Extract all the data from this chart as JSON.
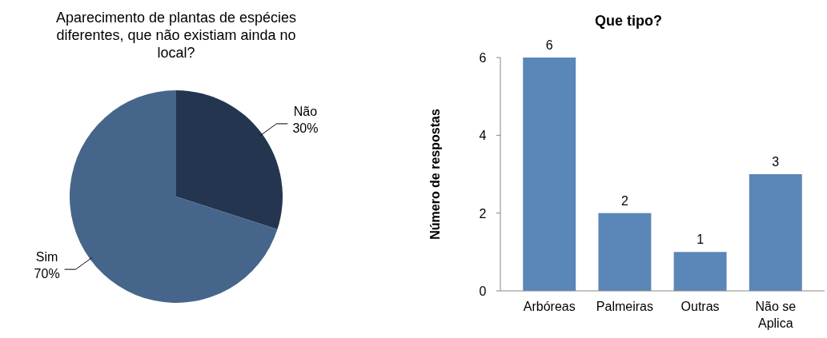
{
  "chart_data": [
    {
      "type": "pie",
      "title": "Aparecimento de plantas de espécies diferentes, que não existiam ainda no local?",
      "categories": [
        "Não",
        "Sim"
      ],
      "values": [
        30,
        70
      ],
      "value_labels": [
        "30%",
        "70%"
      ],
      "colors": [
        "#24364f",
        "#46658a"
      ]
    },
    {
      "type": "bar",
      "title": "Que tipo?",
      "ylabel": "Número de respostas",
      "categories": [
        "Arbóreas",
        "Palmeiras",
        "Outras",
        "Não se Aplica"
      ],
      "values": [
        6,
        2,
        1,
        3
      ],
      "color": "#5a86b8",
      "ylim": [
        0,
        6
      ],
      "yticks": [
        0,
        2,
        4,
        6
      ],
      "data_labels": true,
      "grid": false
    }
  ]
}
